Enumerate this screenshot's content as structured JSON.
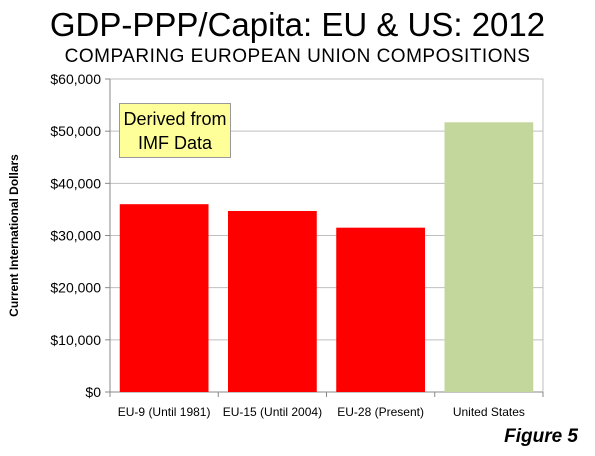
{
  "chart_data": {
    "type": "bar",
    "title": "GDP-PPP/Capita: EU & US: 2012",
    "subtitle": "COMPARING EUROPEAN UNION COMPOSITIONS",
    "xlabel": "",
    "ylabel": "Current International Dollars",
    "ylim": [
      0,
      60000
    ],
    "yticks": [
      0,
      10000,
      20000,
      30000,
      40000,
      50000,
      60000
    ],
    "ytick_labels": [
      "$0",
      "$10,000",
      "$20,000",
      "$30,000",
      "$40,000",
      "$50,000",
      "$60,000"
    ],
    "categories": [
      "EU-9 (Until 1981)",
      "EU-15 (Until 2004)",
      "EU-28 (Present)",
      "United States"
    ],
    "values": [
      36000,
      34700,
      31500,
      51700
    ],
    "bar_colors": [
      "#ff0000",
      "#ff0000",
      "#ff0000",
      "#c3d69b"
    ],
    "grid": "horizontal",
    "annotation": {
      "line1": "Derived from",
      "line2": "IMF Data"
    }
  },
  "figure_label": "Figure 5"
}
